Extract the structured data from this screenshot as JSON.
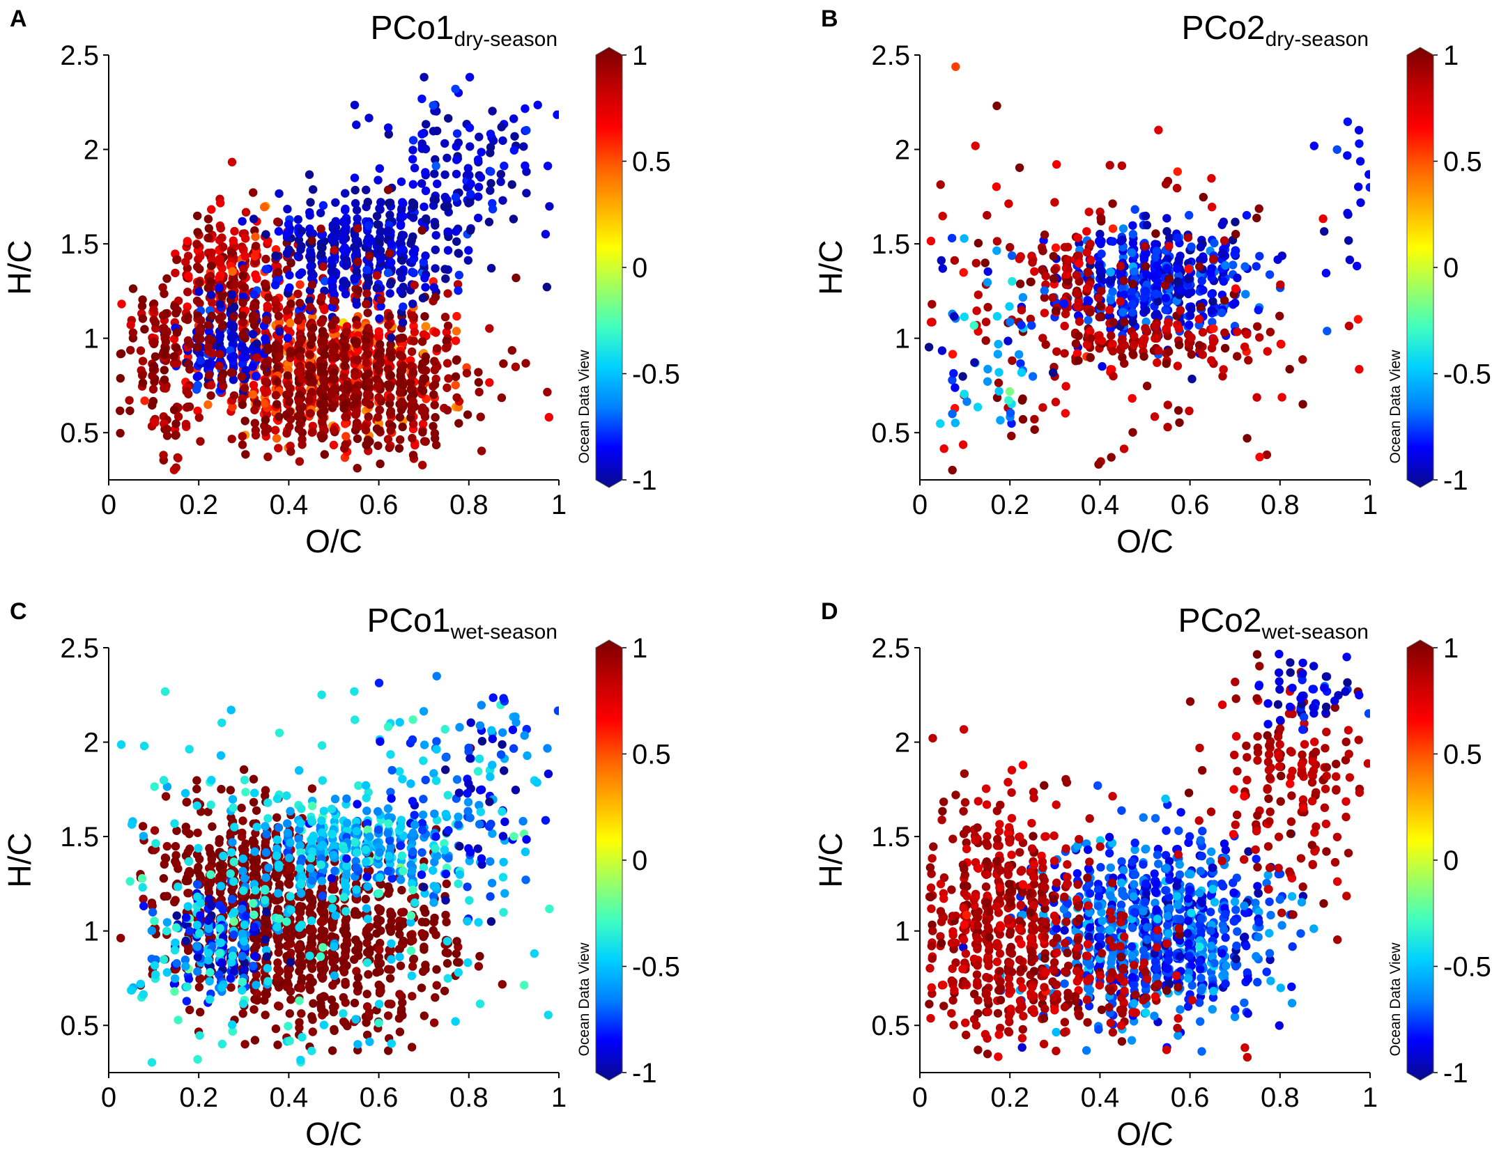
{
  "figure": {
    "colorbar": {
      "ticks": [
        "1",
        "0.5",
        "0",
        "-0.5",
        "-1"
      ],
      "watermark": "Ocean Data View",
      "colormap": [
        "#0a0a8c",
        "#0000ff",
        "#0080ff",
        "#00d0ff",
        "#40ffc0",
        "#a0ff60",
        "#ffff00",
        "#ffb000",
        "#ff6000",
        "#ff0000",
        "#c00000",
        "#7a0000"
      ]
    }
  },
  "chart_data": [
    {
      "panel": "A",
      "type": "scatter",
      "title": {
        "main": "PCo1",
        "sub": "dry-season"
      },
      "xlabel": "O/C",
      "ylabel": "H/C",
      "xlim": [
        0,
        1
      ],
      "ylim": [
        0.25,
        2.5
      ],
      "xticks": [
        "0",
        "0.2",
        "0.4",
        "0.6",
        "0.8",
        "1"
      ],
      "yticks": [
        "0.5",
        "1",
        "1.5",
        "2",
        "2.5"
      ],
      "color_range": [
        -1,
        1
      ],
      "clusters": [
        {
          "x": 0.5,
          "y": 0.85,
          "sx": 0.13,
          "sy": 0.2,
          "n": 650,
          "color": 0.65,
          "jitter": 0.15
        },
        {
          "x": 0.55,
          "y": 0.75,
          "sx": 0.12,
          "sy": 0.18,
          "n": 350,
          "color": 0.95,
          "jitter": 0.05
        },
        {
          "x": 0.27,
          "y": 1.3,
          "sx": 0.07,
          "sy": 0.2,
          "n": 300,
          "color": 0.8,
          "jitter": 0.15
        },
        {
          "x": 0.26,
          "y": 0.95,
          "sx": 0.05,
          "sy": 0.12,
          "n": 160,
          "color": -0.85,
          "jitter": 0.08
        },
        {
          "x": 0.55,
          "y": 1.45,
          "sx": 0.1,
          "sy": 0.15,
          "n": 380,
          "color": -0.9,
          "jitter": 0.08
        },
        {
          "x": 0.8,
          "y": 1.85,
          "sx": 0.1,
          "sy": 0.2,
          "n": 150,
          "color": -0.9,
          "jitter": 0.08
        },
        {
          "x": 0.12,
          "y": 0.85,
          "sx": 0.05,
          "sy": 0.25,
          "n": 120,
          "color": 0.9,
          "jitter": 0.1
        },
        {
          "x": 0.4,
          "y": 0.95,
          "sx": 0.2,
          "sy": 0.25,
          "n": 250,
          "color": 0.95,
          "jitter": 0.05
        }
      ]
    },
    {
      "panel": "B",
      "type": "scatter",
      "title": {
        "main": "PCo2",
        "sub": "dry-season"
      },
      "xlabel": "O/C",
      "ylabel": "H/C",
      "xlim": [
        0,
        1
      ],
      "ylim": [
        0.25,
        2.5
      ],
      "xticks": [
        "0",
        "0.2",
        "0.4",
        "0.6",
        "0.8",
        "1"
      ],
      "yticks": [
        "0.5",
        "1",
        "1.5",
        "2",
        "2.5"
      ],
      "color_range": [
        -1,
        1
      ],
      "clusters": [
        {
          "x": 0.52,
          "y": 1.3,
          "sx": 0.1,
          "sy": 0.14,
          "n": 520,
          "color": -0.82,
          "jitter": 0.1
        },
        {
          "x": 0.33,
          "y": 1.3,
          "sx": 0.04,
          "sy": 0.12,
          "n": 90,
          "color": 0.85,
          "jitter": 0.1
        },
        {
          "x": 0.5,
          "y": 0.98,
          "sx": 0.12,
          "sy": 0.06,
          "n": 110,
          "color": 0.85,
          "jitter": 0.1
        },
        {
          "x": 0.4,
          "y": 1.1,
          "sx": 0.3,
          "sy": 0.45,
          "n": 200,
          "color": 0.85,
          "jitter": 0.12
        },
        {
          "x": 0.15,
          "y": 0.9,
          "sx": 0.07,
          "sy": 0.3,
          "n": 60,
          "color": -0.6,
          "jitter": 0.2
        },
        {
          "x": 0.95,
          "y": 1.9,
          "sx": 0.03,
          "sy": 0.3,
          "n": 20,
          "color": -0.85,
          "jitter": 0.1
        }
      ]
    },
    {
      "panel": "C",
      "type": "scatter",
      "title": {
        "main": "PCo1",
        "sub": "wet-season"
      },
      "xlabel": "O/C",
      "ylabel": "H/C",
      "xlim": [
        0,
        1
      ],
      "ylim": [
        0.25,
        2.5
      ],
      "xticks": [
        "0",
        "0.2",
        "0.4",
        "0.6",
        "0.8",
        "1"
      ],
      "yticks": [
        "0.5",
        "1",
        "1.5",
        "2",
        "2.5"
      ],
      "color_range": [
        -1,
        1
      ],
      "clusters": [
        {
          "x": 0.45,
          "y": 0.95,
          "sx": 0.15,
          "sy": 0.25,
          "n": 800,
          "color": 0.98,
          "jitter": 0.03
        },
        {
          "x": 0.28,
          "y": 1.3,
          "sx": 0.08,
          "sy": 0.2,
          "n": 300,
          "color": 0.98,
          "jitter": 0.03
        },
        {
          "x": 0.55,
          "y": 1.45,
          "sx": 0.1,
          "sy": 0.12,
          "n": 320,
          "color": -0.55,
          "jitter": 0.12
        },
        {
          "x": 0.25,
          "y": 0.95,
          "sx": 0.06,
          "sy": 0.15,
          "n": 180,
          "color": -0.7,
          "jitter": 0.2
        },
        {
          "x": 0.4,
          "y": 1.2,
          "sx": 0.3,
          "sy": 0.55,
          "n": 260,
          "color": -0.4,
          "jitter": 0.08
        },
        {
          "x": 0.8,
          "y": 1.75,
          "sx": 0.1,
          "sy": 0.3,
          "n": 140,
          "color": -0.7,
          "jitter": 0.2
        }
      ]
    },
    {
      "panel": "D",
      "type": "scatter",
      "title": {
        "main": "PCo2",
        "sub": "wet-season"
      },
      "xlabel": "O/C",
      "ylabel": "H/C",
      "xlim": [
        0,
        1
      ],
      "ylim": [
        0.25,
        2.5
      ],
      "xticks": [
        "0",
        "0.2",
        "0.4",
        "0.6",
        "0.8",
        "1"
      ],
      "yticks": [
        "0.5",
        "1",
        "1.5",
        "2",
        "2.5"
      ],
      "color_range": [
        -1,
        1
      ],
      "clusters": [
        {
          "x": 0.52,
          "y": 1.0,
          "sx": 0.13,
          "sy": 0.24,
          "n": 900,
          "color": -0.72,
          "jitter": 0.12
        },
        {
          "x": 0.18,
          "y": 1.1,
          "sx": 0.09,
          "sy": 0.32,
          "n": 500,
          "color": 0.85,
          "jitter": 0.08
        },
        {
          "x": 0.82,
          "y": 1.8,
          "sx": 0.09,
          "sy": 0.3,
          "n": 180,
          "color": 0.85,
          "jitter": 0.08
        },
        {
          "x": 0.88,
          "y": 2.25,
          "sx": 0.06,
          "sy": 0.1,
          "n": 50,
          "color": -0.85,
          "jitter": 0.1
        },
        {
          "x": 0.35,
          "y": 0.7,
          "sx": 0.15,
          "sy": 0.2,
          "n": 150,
          "color": 0.85,
          "jitter": 0.08
        }
      ]
    }
  ]
}
